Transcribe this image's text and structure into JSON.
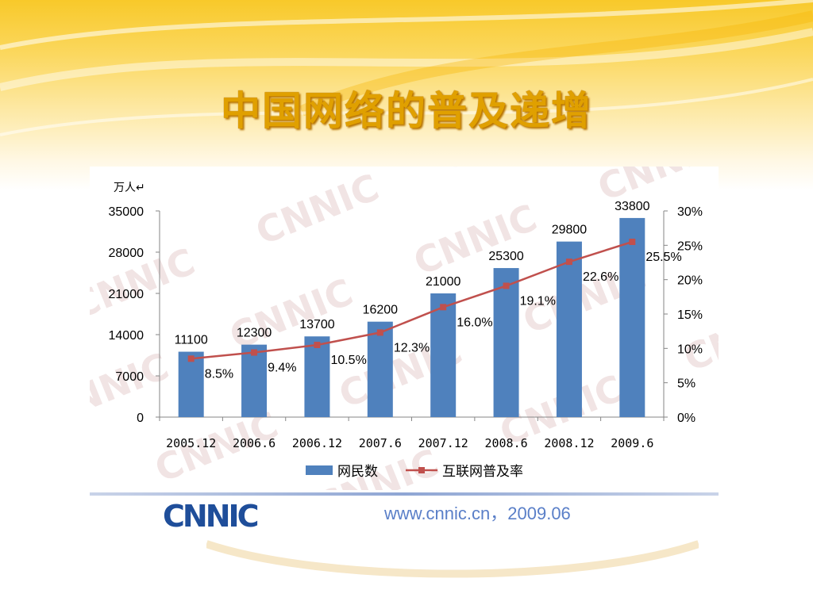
{
  "slide": {
    "title": "中国网络的普及递增",
    "footer_text": "www.cnnic.cn，2009.06",
    "logo_text": "CNNIC"
  },
  "colors": {
    "bar": "#4f81bd",
    "line": "#c0504d",
    "title": "#e0a000",
    "footer": "#5a7fc8"
  },
  "chart_data": {
    "type": "bar",
    "title": "",
    "y_unit_label": "万人↵",
    "categories": [
      "2005.12",
      "2006.6",
      "2006.12",
      "2007.6",
      "2007.12",
      "2008.6",
      "2008.12",
      "2009.6"
    ],
    "series": [
      {
        "name": "网民数",
        "type": "bar",
        "axis": "left",
        "values": [
          11100,
          12300,
          13700,
          16200,
          21000,
          25300,
          29800,
          33800
        ],
        "labels": [
          "11100",
          "12300",
          "13700",
          "16200",
          "21000",
          "25300",
          "29800",
          "33800"
        ]
      },
      {
        "name": "互联网普及率",
        "type": "line",
        "axis": "right",
        "values": [
          8.5,
          9.4,
          10.5,
          12.3,
          16.0,
          19.1,
          22.6,
          25.5
        ],
        "labels": [
          "8.5%",
          "9.4%",
          "10.5%",
          "12.3%",
          "16.0%",
          "19.1%",
          "22.6%",
          "25.5%"
        ]
      }
    ],
    "y_left": {
      "min": 0,
      "max": 35000,
      "ticks": [
        0,
        7000,
        14000,
        21000,
        28000,
        35000
      ],
      "tick_labels": [
        "0",
        "7000",
        "14000",
        "21000",
        "28000",
        "35000"
      ]
    },
    "y_right": {
      "min": 0,
      "max": 30,
      "ticks": [
        0,
        5,
        10,
        15,
        20,
        25,
        30
      ],
      "tick_labels": [
        "0%",
        "5%",
        "10%",
        "15%",
        "20%",
        "25%",
        "30%"
      ]
    },
    "grid": false,
    "legend_position": "bottom"
  }
}
